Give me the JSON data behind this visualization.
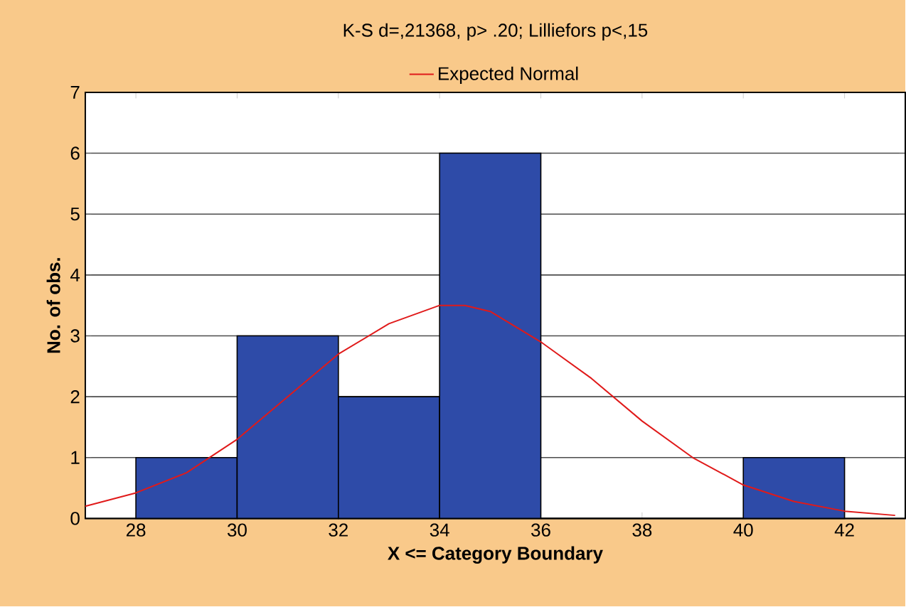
{
  "chart_data": {
    "type": "histogram",
    "title": "K-S d=,21368, p> .20; Lilliefors p<,15",
    "xlabel": "X <= Category Boundary",
    "ylabel": "No. of obs.",
    "bins": [
      28,
      30,
      32,
      34,
      36,
      38,
      40,
      42
    ],
    "values": [
      1,
      3,
      2,
      6,
      0,
      0,
      1
    ],
    "color": "#2e4ba8",
    "series": [
      {
        "type": "line",
        "name": "Expected Normal",
        "color": "#e01a1a",
        "x": [
          27,
          28,
          29,
          30,
          31,
          32,
          33,
          34,
          34.5,
          35,
          36,
          37,
          38,
          39,
          40,
          41,
          42,
          43
        ],
        "values": [
          0.2,
          0.42,
          0.75,
          1.3,
          2.0,
          2.7,
          3.2,
          3.5,
          3.5,
          3.4,
          2.9,
          2.3,
          1.6,
          1.0,
          0.55,
          0.28,
          0.12,
          0.05
        ]
      }
    ],
    "xlim": [
      27,
      43.2
    ],
    "ylim": [
      0,
      7
    ],
    "xticks": [
      28,
      30,
      32,
      34,
      36,
      38,
      40,
      42
    ],
    "yticks": [
      0,
      1,
      2,
      3,
      4,
      5,
      6,
      7
    ],
    "grid": "y",
    "legend": "top",
    "marker": "none",
    "line_style": "solid"
  }
}
